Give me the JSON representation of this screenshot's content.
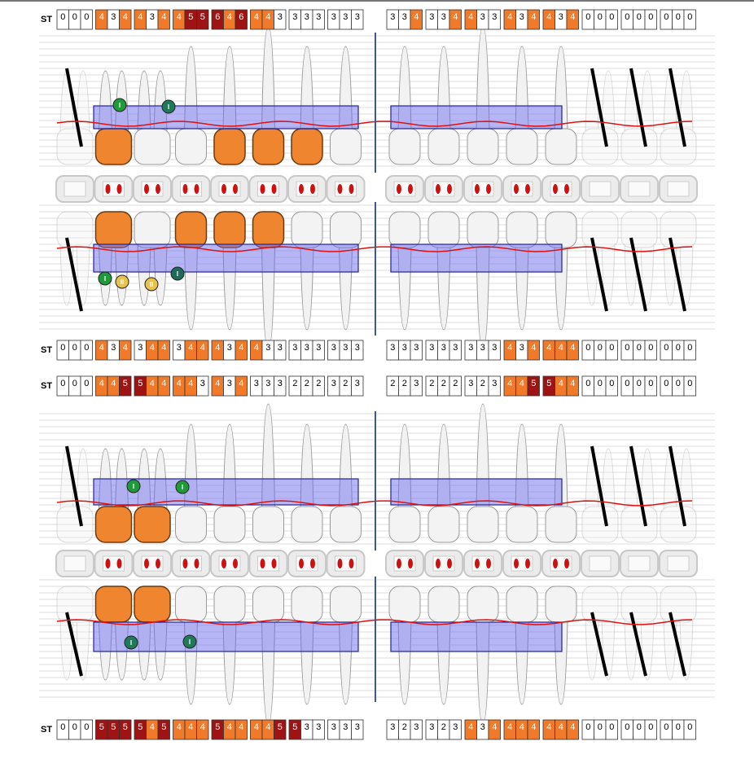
{
  "probing_rows": [
    {
      "label": "ST",
      "groups": [
        [
          0,
          0,
          0
        ],
        [
          4,
          3,
          4
        ],
        [
          4,
          3,
          4
        ],
        [
          4,
          5,
          5
        ],
        [
          6,
          4,
          6
        ],
        [
          4,
          4,
          3
        ],
        [
          3,
          3,
          3
        ],
        [
          3,
          3,
          3
        ],
        [
          3,
          3,
          4
        ],
        [
          3,
          3,
          4
        ],
        [
          4,
          3,
          3
        ],
        [
          4,
          3,
          4
        ],
        [
          4,
          3,
          4
        ],
        [
          0,
          0,
          0
        ],
        [
          0,
          0,
          0
        ],
        [
          0,
          0,
          0
        ]
      ]
    },
    {
      "label": "ST",
      "groups": [
        [
          0,
          0,
          0
        ],
        [
          4,
          3,
          4
        ],
        [
          3,
          4,
          4
        ],
        [
          3,
          4,
          4
        ],
        [
          4,
          3,
          4
        ],
        [
          4,
          3,
          3
        ],
        [
          3,
          3,
          3
        ],
        [
          3,
          3,
          3
        ],
        [
          3,
          3,
          3
        ],
        [
          3,
          3,
          3
        ],
        [
          3,
          3,
          3
        ],
        [
          4,
          3,
          4
        ],
        [
          4,
          4,
          4
        ],
        [
          0,
          0,
          0
        ],
        [
          0,
          0,
          0
        ],
        [
          0,
          0,
          0
        ]
      ]
    },
    {
      "label": "ST",
      "groups": [
        [
          0,
          0,
          0
        ],
        [
          4,
          4,
          5
        ],
        [
          5,
          4,
          4
        ],
        [
          4,
          4,
          3
        ],
        [
          4,
          3,
          4
        ],
        [
          3,
          3,
          3
        ],
        [
          2,
          2,
          2
        ],
        [
          3,
          2,
          3
        ],
        [
          2,
          2,
          3
        ],
        [
          2,
          2,
          2
        ],
        [
          3,
          2,
          3
        ],
        [
          4,
          4,
          5
        ],
        [
          5,
          4,
          4
        ],
        [
          0,
          0,
          0
        ],
        [
          0,
          0,
          0
        ],
        [
          0,
          0,
          0
        ]
      ]
    },
    {
      "label": "ST",
      "groups": [
        [
          0,
          0,
          0
        ],
        [
          5,
          5,
          5
        ],
        [
          5,
          4,
          5
        ],
        [
          4,
          4,
          4
        ],
        [
          5,
          4,
          4
        ],
        [
          4,
          4,
          5
        ],
        [
          5,
          3,
          3
        ],
        [
          3,
          3,
          3
        ],
        [
          3,
          2,
          3
        ],
        [
          3,
          2,
          3
        ],
        [
          4,
          3,
          4
        ],
        [
          4,
          4,
          4
        ],
        [
          4,
          4,
          4
        ],
        [
          0,
          0,
          0
        ],
        [
          0,
          0,
          0
        ],
        [
          0,
          0,
          0
        ]
      ]
    }
  ],
  "depth_colors": [
    {
      "min": 4,
      "color": "#f07a2a"
    },
    {
      "min": 5,
      "color": "#9e1414"
    }
  ],
  "furcations": [
    {
      "label": "I",
      "color": "#1f9a3a"
    },
    {
      "label": "I",
      "color": "#1f7a5a"
    },
    {
      "label": "I",
      "color": "#1f9a3a"
    },
    {
      "label": "II",
      "color": "#e8c24a"
    },
    {
      "label": "II",
      "color": "#e8c24a"
    },
    {
      "label": "I",
      "color": "#1f6a5a"
    },
    {
      "label": "I",
      "color": "#1f9a3a"
    },
    {
      "label": "I",
      "color": "#1f9a3a"
    },
    {
      "label": "I",
      "color": "#1f7a5a"
    },
    {
      "label": "I",
      "color": "#1f7a5a"
    }
  ]
}
